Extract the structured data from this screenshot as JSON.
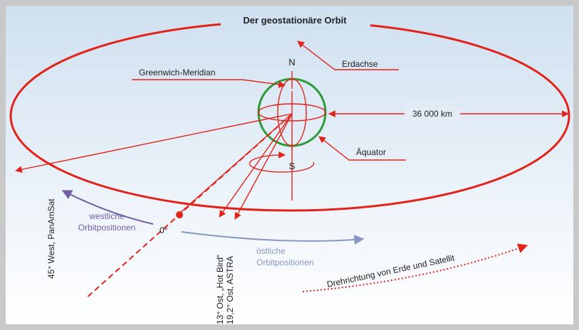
{
  "title": "Der geostationäre Orbit",
  "labels": {
    "north": "N",
    "south": "S",
    "axis": "Erdachse",
    "meridian": "Greenwich-Meridian",
    "distance": "36 000 km",
    "equator": "Äquator",
    "zero": "0°"
  },
  "satellites": [
    "45° West, PanAmSat",
    "13° Ost, „Hot Bird“",
    "19,2° Ost, ASTRA"
  ],
  "west": [
    "westliche",
    "Orbitpositionen"
  ],
  "east": [
    "östliche",
    "Orbitpositionen"
  ],
  "rotation": "Drehrichtung von Erde und Satellit"
}
